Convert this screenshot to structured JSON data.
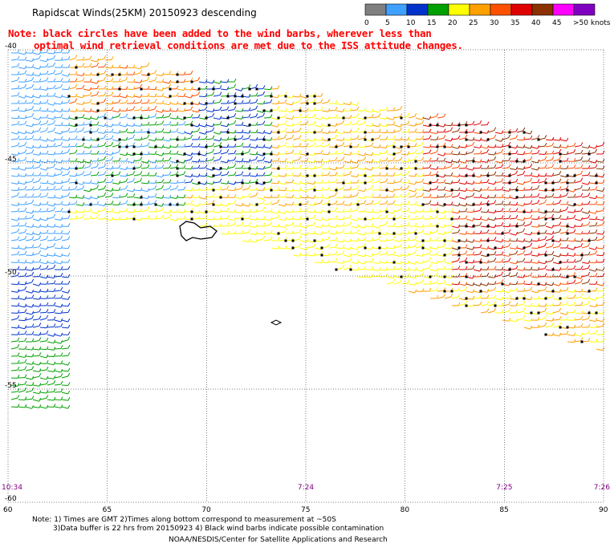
{
  "header": {
    "title": "Rapidscat Winds(25KM) 20150923 descending"
  },
  "note": {
    "line1": "Note: black circles have been added to the wind barbs, wherever less than",
    "line2": "optimal wind retrieval conditions are met due to the ISS attitude changes."
  },
  "colorbar": {
    "labels": [
      "0",
      "5",
      "10",
      "15",
      "20",
      "25",
      "30",
      "35",
      "40",
      "45",
      ">50 knots"
    ],
    "colors": [
      "#7f7f7f",
      "#3fa0ff",
      "#0033cc",
      "#00a000",
      "#ffff00",
      "#ffa000",
      "#ff5000",
      "#e00000",
      "#8b3000",
      "#ff00ff",
      "#8000c0"
    ]
  },
  "footer": {
    "line1": "Note: 1) Times are GMT 2)Times along bottom correspond to measurement at ~50S",
    "line2": "3)Data buffer is 22 hrs from 20150923 4) Black wind barbs indicate possible contamination",
    "credit": "NOAA/NESDIS/Center for Satellite Applications and Research"
  },
  "chart_data": {
    "type": "map",
    "title": "Rapidscat Winds(25KM) 20150923 descending",
    "x_ticks": [
      "60",
      "65",
      "70",
      "75",
      "80",
      "85",
      "90"
    ],
    "y_ticks": [
      "-40",
      "-45",
      "-50",
      "-55",
      "-60"
    ],
    "xlim": [
      60,
      90
    ],
    "ylim": [
      -60,
      -40
    ],
    "grid": true,
    "times": [
      {
        "lon": 60,
        "label": "10:34"
      },
      {
        "lon": 75,
        "label": "7:24"
      },
      {
        "lon": 85,
        "label": "7:25"
      },
      {
        "lon": 90,
        "label": "7:26"
      }
    ],
    "units": "knots",
    "swaths": [
      {
        "name": "main",
        "description_lon_range": [
          60,
          90
        ]
      },
      {
        "name": "left",
        "description_lon_range": [
          60,
          63
        ]
      }
    ]
  }
}
